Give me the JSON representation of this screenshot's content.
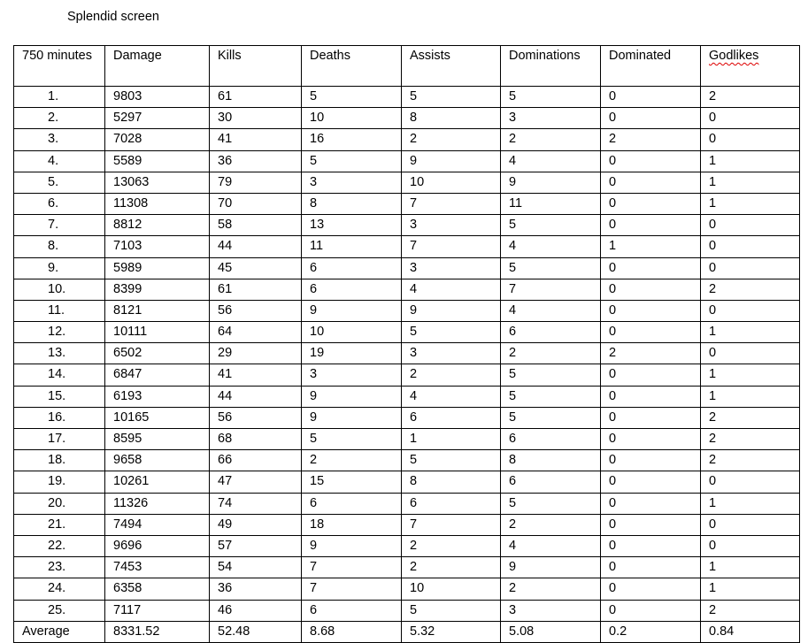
{
  "title": "Splendid screen",
  "table": {
    "headers": [
      "750 minutes",
      "Damage",
      "Kills",
      "Deaths",
      "Assists",
      "Dominations",
      "Dominated",
      "Godlikes"
    ],
    "rows": [
      [
        "1.",
        "9803",
        "61",
        "5",
        "5",
        "5",
        "0",
        "2"
      ],
      [
        "2.",
        "5297",
        "30",
        "10",
        "8",
        "3",
        "0",
        "0"
      ],
      [
        "3.",
        "7028",
        "41",
        "16",
        "2",
        "2",
        "2",
        "0"
      ],
      [
        "4.",
        "5589",
        "36",
        "5",
        "9",
        "4",
        "0",
        "1"
      ],
      [
        "5.",
        "13063",
        "79",
        "3",
        "10",
        "9",
        "0",
        "1"
      ],
      [
        "6.",
        "11308",
        "70",
        "8",
        "7",
        "11",
        "0",
        "1"
      ],
      [
        "7.",
        "8812",
        "58",
        "13",
        "3",
        "5",
        "0",
        "0"
      ],
      [
        "8.",
        "7103",
        "44",
        "11",
        "7",
        "4",
        "1",
        "0"
      ],
      [
        "9.",
        "5989",
        "45",
        "6",
        "3",
        "5",
        "0",
        "0"
      ],
      [
        "10.",
        "8399",
        "61",
        "6",
        "4",
        "7",
        "0",
        "2"
      ],
      [
        "11.",
        "8121",
        "56",
        "9",
        "9",
        "4",
        "0",
        "0"
      ],
      [
        "12.",
        "10111",
        "64",
        "10",
        "5",
        "6",
        "0",
        "1"
      ],
      [
        "13.",
        "6502",
        "29",
        "19",
        "3",
        "2",
        "2",
        "0"
      ],
      [
        "14.",
        "6847",
        "41",
        "3",
        "2",
        "5",
        "0",
        "1"
      ],
      [
        "15.",
        "6193",
        "44",
        "9",
        "4",
        "5",
        "0",
        "1"
      ],
      [
        "16.",
        "10165",
        "56",
        "9",
        "6",
        "5",
        "0",
        "2"
      ],
      [
        "17.",
        "8595",
        "68",
        "5",
        "1",
        "6",
        "0",
        "2"
      ],
      [
        "18.",
        "9658",
        "66",
        "2",
        "5",
        "8",
        "0",
        "2"
      ],
      [
        "19.",
        "10261",
        "47",
        "15",
        "8",
        "6",
        "0",
        "0"
      ],
      [
        "20.",
        "11326",
        "74",
        "6",
        "6",
        "5",
        "0",
        "1"
      ],
      [
        "21.",
        "7494",
        "49",
        "18",
        "7",
        "2",
        "0",
        "0"
      ],
      [
        "22.",
        "9696",
        "57",
        "9",
        "2",
        "4",
        "0",
        "0"
      ],
      [
        "23.",
        "7453",
        "54",
        "7",
        "2",
        "9",
        "0",
        "1"
      ],
      [
        "24.",
        "6358",
        "36",
        "7",
        "10",
        "2",
        "0",
        "1"
      ],
      [
        "25.",
        "7117",
        "46",
        "6",
        "5",
        "3",
        "0",
        "2"
      ]
    ],
    "average": [
      "Average",
      "8331.52",
      "52.48",
      "8.68",
      "5.32",
      "5.08",
      "0.2",
      "0.84"
    ]
  }
}
